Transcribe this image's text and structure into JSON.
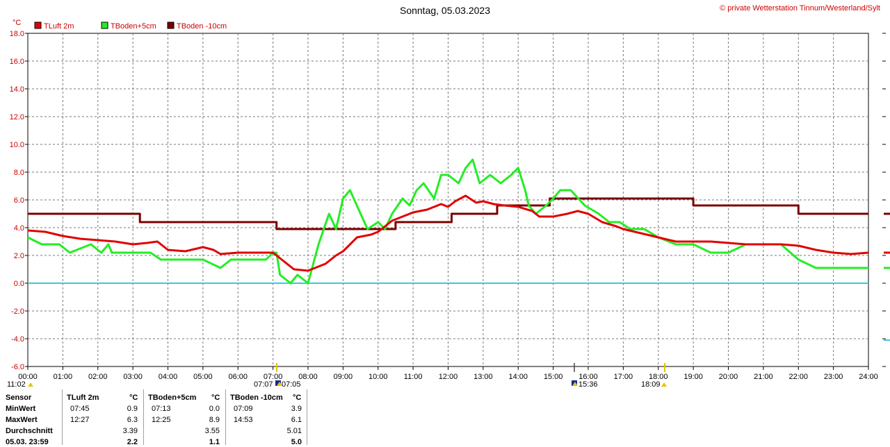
{
  "title": "Sonntag, 05.03.2023",
  "copyright": "© private Wetterstation Tinnum/Westerland/Sylt",
  "unit": "°C",
  "chart_data": {
    "type": "line",
    "title": "Sonntag, 05.03.2023",
    "ylabel": "°C",
    "xlabel": "",
    "xlim": [
      0,
      24
    ],
    "ylim": [
      -6,
      18
    ],
    "grid": true,
    "legend_position": "top-left",
    "y_ticks": [
      "18.0",
      "16.0",
      "14.0",
      "12.0",
      "10.0",
      "8.0",
      "6.0",
      "4.0",
      "2.0",
      "0.0",
      "-2.0",
      "-4.0",
      "-6.0"
    ],
    "x_ticks": [
      "00:00",
      "01:00",
      "02:00",
      "03:00",
      "04:00",
      "05:00",
      "06:00",
      "07:00",
      "08:00",
      "09:00",
      "10:00",
      "11:00",
      "12:00",
      "13:00",
      "14:00",
      "15:00",
      "16:00",
      "17:00",
      "18:00",
      "19:00",
      "20:00",
      "21:00",
      "22:00",
      "23:00",
      "24:00"
    ],
    "reference_line": {
      "y": 0,
      "color": "#33ccdd"
    },
    "series": [
      {
        "name": "TLuft 2m",
        "color": "#e00000",
        "x": [
          0,
          0.5,
          1,
          1.5,
          2,
          2.5,
          3,
          3.4,
          3.7,
          4,
          4.5,
          5,
          5.3,
          5.5,
          6,
          6.5,
          7,
          7.3,
          7.6,
          8,
          8.5,
          8.8,
          9,
          9.4,
          9.8,
          10,
          10.4,
          10.8,
          11,
          11.4,
          11.8,
          12,
          12.2,
          12.5,
          12.8,
          13,
          13.3,
          13.6,
          14,
          14.4,
          14.6,
          15,
          15.4,
          15.7,
          16,
          16.4,
          16.8,
          17,
          17.5,
          18,
          18.5,
          19,
          19.5,
          20,
          20.5,
          21,
          21.5,
          22,
          22.5,
          23,
          23.5,
          24
        ],
        "y": [
          3.8,
          3.7,
          3.4,
          3.2,
          3.1,
          3.0,
          2.8,
          2.9,
          3.0,
          2.4,
          2.3,
          2.6,
          2.4,
          2.1,
          2.2,
          2.2,
          2.2,
          1.6,
          1.0,
          0.9,
          1.4,
          2.0,
          2.3,
          3.3,
          3.5,
          3.7,
          4.5,
          4.9,
          5.1,
          5.3,
          5.7,
          5.5,
          5.9,
          6.3,
          5.8,
          5.9,
          5.7,
          5.6,
          5.5,
          5.2,
          4.8,
          4.8,
          5.0,
          5.2,
          5.0,
          4.4,
          4.1,
          3.9,
          3.6,
          3.3,
          3.0,
          3.0,
          3.0,
          2.9,
          2.8,
          2.8,
          2.8,
          2.7,
          2.4,
          2.2,
          2.1,
          2.2
        ]
      },
      {
        "name": "TBoden+5cm",
        "color": "#22ee22",
        "x": [
          0,
          0.4,
          0.9,
          1.2,
          1.8,
          2.1,
          2.3,
          2.4,
          3.0,
          3.5,
          3.8,
          4.5,
          5.0,
          5.5,
          5.8,
          6.3,
          6.8,
          7.0,
          7.1,
          7.2,
          7.5,
          7.7,
          8.0,
          8.3,
          8.6,
          8.8,
          9.0,
          9.2,
          9.5,
          9.7,
          10.0,
          10.2,
          10.4,
          10.7,
          10.9,
          11.1,
          11.3,
          11.6,
          11.8,
          12.0,
          12.3,
          12.5,
          12.7,
          12.9,
          13.2,
          13.5,
          13.8,
          14.0,
          14.2,
          14.3,
          14.5,
          14.8,
          15.0,
          15.2,
          15.5,
          15.9,
          16.3,
          16.6,
          16.9,
          17.2,
          17.6,
          18.0,
          18.5,
          19.0,
          19.5,
          20.0,
          20.5,
          21.0,
          21.5,
          22.0,
          22.5,
          23.0,
          23.5,
          24.0
        ],
        "y": [
          3.3,
          2.8,
          2.8,
          2.2,
          2.8,
          2.2,
          2.8,
          2.2,
          2.2,
          2.2,
          1.7,
          1.7,
          1.7,
          1.1,
          1.7,
          1.7,
          1.7,
          2.2,
          2.2,
          0.6,
          0.0,
          0.6,
          0.0,
          2.8,
          5.0,
          3.9,
          6.1,
          6.7,
          5.0,
          3.9,
          4.4,
          3.9,
          5.0,
          6.1,
          5.6,
          6.7,
          7.2,
          6.1,
          7.8,
          7.8,
          7.2,
          8.3,
          8.9,
          7.2,
          7.8,
          7.2,
          7.8,
          8.3,
          6.7,
          5.6,
          5.0,
          5.6,
          6.1,
          6.7,
          6.7,
          5.6,
          5.0,
          4.4,
          4.4,
          3.9,
          3.9,
          3.3,
          2.8,
          2.8,
          2.2,
          2.2,
          2.8,
          2.8,
          2.8,
          1.7,
          1.1,
          1.1,
          1.1,
          1.1
        ]
      },
      {
        "name": "TBoden -10cm",
        "color": "#7a0000",
        "x": [
          0,
          3.2,
          3.2,
          7.1,
          7.1,
          10.5,
          10.5,
          12.1,
          12.1,
          13.4,
          13.4,
          14.9,
          14.9,
          19.0,
          19.0,
          22.0,
          22.0,
          24.0
        ],
        "y": [
          5.0,
          5.0,
          4.4,
          4.4,
          3.9,
          3.9,
          4.4,
          4.4,
          5.0,
          5.0,
          5.6,
          5.6,
          6.1,
          6.1,
          5.6,
          5.6,
          5.0,
          5.0
        ]
      }
    ]
  },
  "sun_events": {
    "sunrise": "07:07",
    "sunrise_alt": "07:05",
    "moonrise": "11:02",
    "noon": "15:36",
    "sunset": "18:09"
  },
  "stats": {
    "headers": {
      "sensor": "Sensor",
      "col1": "TLuft 2m",
      "col2": "TBoden+5cm",
      "col3": "TBoden -10cm",
      "unit": "°C"
    },
    "rows": [
      {
        "label": "MinWert",
        "t1": "07:45",
        "v1": "0.9",
        "t2": "07:13",
        "v2": "0.0",
        "t3": "07:09",
        "v3": "3.9"
      },
      {
        "label": "MaxWert",
        "t1": "12:27",
        "v1": "6.3",
        "t2": "12:25",
        "v2": "8.9",
        "t3": "14:53",
        "v3": "6.1"
      },
      {
        "label": "Durchschnitt",
        "t1": "",
        "v1": "3.39",
        "t2": "",
        "v2": "3.55",
        "t3": "",
        "v3": "5.01"
      },
      {
        "label": "05.03. 23:59",
        "t1": "",
        "v1": "2.2",
        "t2": "",
        "v2": "1.1",
        "t3": "",
        "v3": "5.0"
      }
    ]
  }
}
